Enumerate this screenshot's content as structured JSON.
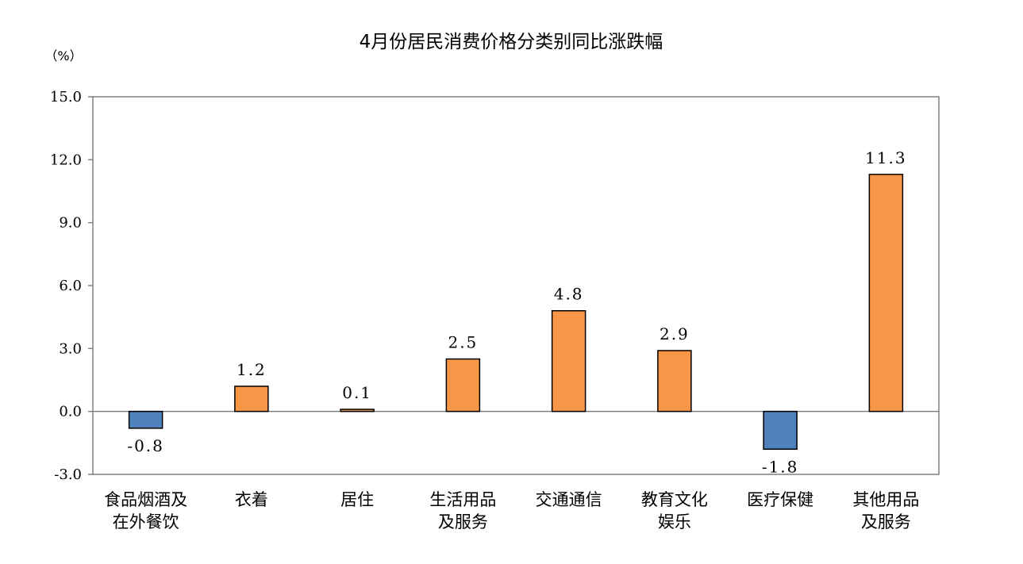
{
  "chart_data": {
    "type": "bar",
    "title": "4月份居民消费价格分类别同比涨跌幅",
    "unit_label": "（%）",
    "ylim": [
      -3.0,
      15.0
    ],
    "yticks": [
      15.0,
      12.0,
      9.0,
      6.0,
      3.0,
      0.0,
      -3.0
    ],
    "ytick_labels": [
      "15.0",
      "12.0",
      "9.0",
      "6.0",
      "3.0",
      "0.0",
      "-3.0"
    ],
    "categories": [
      [
        "食品烟酒及",
        "在外餐饮"
      ],
      [
        "衣着"
      ],
      [
        "居住"
      ],
      [
        "生活用品",
        "及服务"
      ],
      [
        "交通通信"
      ],
      [
        "教育文化",
        "娱乐"
      ],
      [
        "医疗保健"
      ],
      [
        "其他用品",
        "及服务"
      ]
    ],
    "values": [
      -0.8,
      1.2,
      0.1,
      2.5,
      4.8,
      2.9,
      -1.8,
      11.3
    ],
    "value_labels": [
      "-0.8",
      "1.2",
      "0.1",
      "2.5",
      "4.8",
      "2.9",
      "-1.8",
      "11.3"
    ],
    "grid": false,
    "colors": {
      "positive": "#F79646",
      "negative": "#4F81BD",
      "bar_outline": "#000000",
      "axis": "#808080",
      "text": "#000000"
    }
  }
}
